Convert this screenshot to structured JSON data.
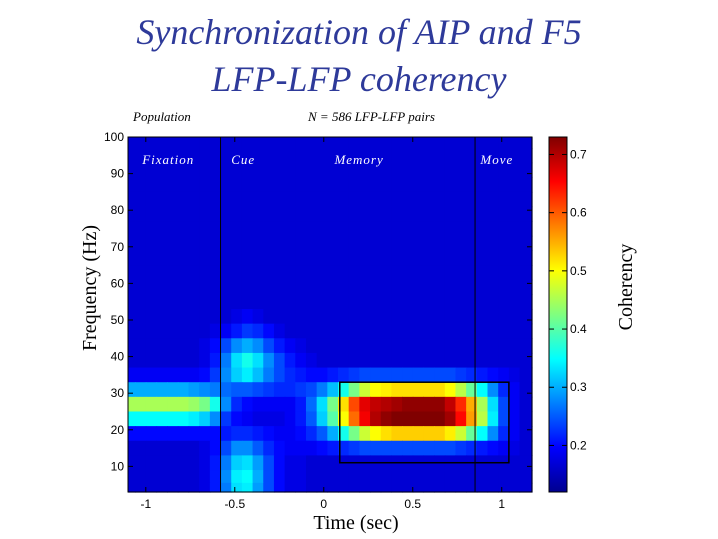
{
  "title": {
    "line1": "Synchronization of AIP and F5",
    "line2": "LFP-LFP coherency"
  },
  "chart_data": {
    "type": "heatmap",
    "corner_left": "Population",
    "corner_center": "N = 586 LFP-LFP pairs",
    "xlabel": "Time (sec)",
    "ylabel": "Frequency (Hz)",
    "colorbar_label": "Coherency",
    "xlim": [
      -1.1,
      1.17
    ],
    "ylim": [
      3,
      100
    ],
    "xticks": [
      -1,
      -0.5,
      0,
      0.5,
      1
    ],
    "xtick_labels": [
      "-1",
      "-0.5",
      "0",
      "0.5",
      "1"
    ],
    "yticks": [
      10,
      20,
      30,
      40,
      50,
      60,
      70,
      80,
      90,
      100
    ],
    "ytick_labels": [
      "10",
      "20",
      "30",
      "40",
      "50",
      "60",
      "70",
      "80",
      "90",
      "100"
    ],
    "clim": [
      0.12,
      0.73
    ],
    "cticks": [
      0.2,
      0.3,
      0.4,
      0.5,
      0.6,
      0.7
    ],
    "ctick_labels": [
      "0.2",
      "0.3",
      "0.4",
      "0.5",
      "0.6",
      "0.7"
    ],
    "colormap": "jet",
    "epoch_lines_x": [
      -0.58,
      0.85
    ],
    "epoch_labels": [
      {
        "text": "Fixation",
        "x": -1.02,
        "y": 94
      },
      {
        "text": "Cue",
        "x": -0.52,
        "y": 94
      },
      {
        "text": "Memory",
        "x": 0.06,
        "y": 94
      },
      {
        "text": "Move",
        "x": 0.88,
        "y": 94
      }
    ],
    "highlight_box": {
      "x0": 0.09,
      "x1": 1.04,
      "y0": 11,
      "y1": 33
    },
    "x": [
      -1.09,
      -1.03,
      -0.97,
      -0.91,
      -0.85,
      -0.79,
      -0.73,
      -0.67,
      -0.61,
      -0.55,
      -0.49,
      -0.43,
      -0.37,
      -0.31,
      -0.25,
      -0.19,
      -0.13,
      -0.07,
      -0.01,
      0.05,
      0.11,
      0.17,
      0.23,
      0.29,
      0.35,
      0.41,
      0.47,
      0.53,
      0.59,
      0.65,
      0.71,
      0.77,
      0.83,
      0.89,
      0.95,
      1.01,
      1.07,
      1.13
    ],
    "y": [
      99,
      95,
      91,
      87,
      83,
      79,
      75,
      71,
      67,
      63,
      59,
      55,
      51,
      47,
      43,
      39,
      35,
      31,
      27,
      23,
      19,
      15,
      11,
      7,
      4
    ],
    "z": [
      [
        0.17,
        0.17,
        0.17,
        0.17,
        0.17,
        0.17,
        0.17,
        0.17,
        0.17,
        0.17,
        0.17,
        0.17,
        0.17,
        0.17,
        0.17,
        0.17,
        0.17,
        0.17,
        0.17,
        0.17,
        0.17,
        0.17,
        0.17,
        0.17,
        0.17,
        0.17,
        0.17,
        0.17,
        0.17,
        0.17,
        0.17,
        0.17,
        0.17,
        0.17,
        0.17,
        0.17,
        0.17,
        0.17
      ],
      [
        0.17,
        0.17,
        0.17,
        0.17,
        0.17,
        0.17,
        0.17,
        0.17,
        0.17,
        0.17,
        0.17,
        0.17,
        0.17,
        0.17,
        0.17,
        0.17,
        0.17,
        0.17,
        0.17,
        0.17,
        0.17,
        0.17,
        0.17,
        0.17,
        0.17,
        0.17,
        0.17,
        0.17,
        0.17,
        0.17,
        0.17,
        0.17,
        0.17,
        0.17,
        0.17,
        0.17,
        0.17,
        0.17
      ],
      [
        0.17,
        0.17,
        0.17,
        0.17,
        0.17,
        0.17,
        0.17,
        0.17,
        0.17,
        0.17,
        0.17,
        0.17,
        0.17,
        0.17,
        0.17,
        0.17,
        0.17,
        0.17,
        0.17,
        0.17,
        0.17,
        0.17,
        0.17,
        0.17,
        0.17,
        0.17,
        0.17,
        0.17,
        0.17,
        0.17,
        0.17,
        0.17,
        0.17,
        0.17,
        0.17,
        0.17,
        0.17,
        0.17
      ],
      [
        0.17,
        0.17,
        0.17,
        0.17,
        0.17,
        0.17,
        0.17,
        0.17,
        0.17,
        0.17,
        0.17,
        0.17,
        0.17,
        0.17,
        0.17,
        0.17,
        0.17,
        0.17,
        0.17,
        0.17,
        0.17,
        0.17,
        0.17,
        0.17,
        0.17,
        0.17,
        0.17,
        0.17,
        0.17,
        0.17,
        0.17,
        0.17,
        0.17,
        0.17,
        0.17,
        0.17,
        0.17,
        0.17
      ],
      [
        0.17,
        0.17,
        0.17,
        0.17,
        0.17,
        0.17,
        0.17,
        0.17,
        0.17,
        0.17,
        0.17,
        0.17,
        0.17,
        0.17,
        0.17,
        0.17,
        0.17,
        0.17,
        0.17,
        0.17,
        0.17,
        0.17,
        0.17,
        0.17,
        0.17,
        0.17,
        0.17,
        0.17,
        0.17,
        0.17,
        0.17,
        0.17,
        0.17,
        0.17,
        0.17,
        0.17,
        0.17,
        0.17
      ],
      [
        0.17,
        0.17,
        0.17,
        0.17,
        0.17,
        0.17,
        0.17,
        0.17,
        0.17,
        0.17,
        0.17,
        0.17,
        0.17,
        0.17,
        0.17,
        0.17,
        0.17,
        0.17,
        0.17,
        0.17,
        0.17,
        0.17,
        0.17,
        0.17,
        0.17,
        0.17,
        0.17,
        0.17,
        0.17,
        0.17,
        0.17,
        0.17,
        0.17,
        0.17,
        0.17,
        0.17,
        0.17,
        0.17
      ],
      [
        0.17,
        0.17,
        0.17,
        0.17,
        0.17,
        0.17,
        0.17,
        0.17,
        0.17,
        0.17,
        0.17,
        0.17,
        0.17,
        0.17,
        0.17,
        0.17,
        0.17,
        0.17,
        0.17,
        0.17,
        0.17,
        0.17,
        0.17,
        0.17,
        0.17,
        0.17,
        0.17,
        0.17,
        0.17,
        0.17,
        0.17,
        0.17,
        0.17,
        0.17,
        0.17,
        0.17,
        0.17,
        0.17
      ],
      [
        0.17,
        0.17,
        0.17,
        0.17,
        0.17,
        0.17,
        0.17,
        0.17,
        0.17,
        0.17,
        0.17,
        0.17,
        0.17,
        0.17,
        0.17,
        0.17,
        0.17,
        0.17,
        0.17,
        0.17,
        0.17,
        0.17,
        0.17,
        0.17,
        0.17,
        0.17,
        0.17,
        0.17,
        0.17,
        0.17,
        0.17,
        0.17,
        0.17,
        0.17,
        0.17,
        0.17,
        0.17,
        0.17
      ],
      [
        0.17,
        0.17,
        0.17,
        0.17,
        0.17,
        0.17,
        0.17,
        0.17,
        0.17,
        0.17,
        0.17,
        0.17,
        0.17,
        0.17,
        0.17,
        0.17,
        0.17,
        0.17,
        0.17,
        0.17,
        0.17,
        0.17,
        0.17,
        0.17,
        0.17,
        0.17,
        0.17,
        0.17,
        0.17,
        0.17,
        0.17,
        0.17,
        0.17,
        0.17,
        0.17,
        0.17,
        0.17,
        0.17
      ],
      [
        0.17,
        0.17,
        0.17,
        0.17,
        0.17,
        0.17,
        0.17,
        0.17,
        0.17,
        0.17,
        0.17,
        0.17,
        0.17,
        0.17,
        0.17,
        0.17,
        0.17,
        0.17,
        0.17,
        0.17,
        0.17,
        0.17,
        0.17,
        0.17,
        0.17,
        0.17,
        0.17,
        0.17,
        0.17,
        0.17,
        0.17,
        0.17,
        0.17,
        0.17,
        0.17,
        0.17,
        0.17,
        0.17
      ],
      [
        0.17,
        0.17,
        0.17,
        0.17,
        0.17,
        0.17,
        0.17,
        0.17,
        0.17,
        0.17,
        0.17,
        0.17,
        0.17,
        0.17,
        0.17,
        0.17,
        0.17,
        0.17,
        0.17,
        0.17,
        0.17,
        0.17,
        0.17,
        0.17,
        0.17,
        0.17,
        0.17,
        0.17,
        0.17,
        0.17,
        0.17,
        0.17,
        0.17,
        0.17,
        0.17,
        0.17,
        0.17,
        0.17
      ],
      [
        0.17,
        0.17,
        0.17,
        0.17,
        0.17,
        0.17,
        0.17,
        0.17,
        0.17,
        0.17,
        0.17,
        0.17,
        0.17,
        0.17,
        0.17,
        0.17,
        0.17,
        0.17,
        0.17,
        0.17,
        0.17,
        0.17,
        0.17,
        0.17,
        0.17,
        0.17,
        0.17,
        0.17,
        0.17,
        0.17,
        0.17,
        0.17,
        0.17,
        0.17,
        0.17,
        0.17,
        0.17,
        0.17
      ],
      [
        0.17,
        0.17,
        0.17,
        0.17,
        0.17,
        0.17,
        0.17,
        0.17,
        0.17,
        0.17,
        0.18,
        0.19,
        0.18,
        0.17,
        0.17,
        0.17,
        0.17,
        0.17,
        0.17,
        0.17,
        0.17,
        0.17,
        0.17,
        0.17,
        0.17,
        0.17,
        0.17,
        0.17,
        0.17,
        0.17,
        0.17,
        0.17,
        0.17,
        0.17,
        0.17,
        0.17,
        0.17,
        0.17
      ],
      [
        0.17,
        0.17,
        0.17,
        0.17,
        0.17,
        0.17,
        0.17,
        0.17,
        0.18,
        0.19,
        0.21,
        0.23,
        0.22,
        0.2,
        0.18,
        0.17,
        0.17,
        0.17,
        0.17,
        0.17,
        0.17,
        0.17,
        0.17,
        0.17,
        0.17,
        0.17,
        0.17,
        0.17,
        0.17,
        0.17,
        0.17,
        0.17,
        0.17,
        0.17,
        0.17,
        0.17,
        0.17,
        0.17
      ],
      [
        0.17,
        0.17,
        0.17,
        0.17,
        0.17,
        0.17,
        0.17,
        0.18,
        0.2,
        0.24,
        0.28,
        0.3,
        0.28,
        0.24,
        0.21,
        0.19,
        0.18,
        0.17,
        0.17,
        0.17,
        0.17,
        0.17,
        0.17,
        0.17,
        0.17,
        0.17,
        0.17,
        0.17,
        0.17,
        0.17,
        0.17,
        0.17,
        0.17,
        0.17,
        0.17,
        0.17,
        0.17,
        0.17
      ],
      [
        0.17,
        0.17,
        0.17,
        0.17,
        0.17,
        0.17,
        0.17,
        0.18,
        0.21,
        0.27,
        0.33,
        0.36,
        0.33,
        0.28,
        0.24,
        0.21,
        0.19,
        0.18,
        0.17,
        0.17,
        0.17,
        0.17,
        0.17,
        0.17,
        0.17,
        0.17,
        0.17,
        0.17,
        0.17,
        0.17,
        0.17,
        0.17,
        0.17,
        0.17,
        0.17,
        0.17,
        0.17,
        0.17
      ],
      [
        0.19,
        0.19,
        0.19,
        0.19,
        0.19,
        0.19,
        0.19,
        0.2,
        0.23,
        0.28,
        0.32,
        0.34,
        0.31,
        0.27,
        0.24,
        0.22,
        0.21,
        0.2,
        0.2,
        0.21,
        0.22,
        0.23,
        0.24,
        0.24,
        0.24,
        0.24,
        0.24,
        0.24,
        0.24,
        0.24,
        0.24,
        0.23,
        0.22,
        0.21,
        0.2,
        0.19,
        0.18,
        0.17
      ],
      [
        0.3,
        0.3,
        0.3,
        0.3,
        0.3,
        0.3,
        0.29,
        0.28,
        0.27,
        0.26,
        0.25,
        0.25,
        0.24,
        0.23,
        0.22,
        0.22,
        0.23,
        0.24,
        0.27,
        0.31,
        0.36,
        0.42,
        0.47,
        0.5,
        0.51,
        0.52,
        0.52,
        0.52,
        0.52,
        0.52,
        0.5,
        0.46,
        0.41,
        0.35,
        0.28,
        0.22,
        0.19,
        0.17
      ],
      [
        0.45,
        0.45,
        0.45,
        0.45,
        0.45,
        0.45,
        0.44,
        0.42,
        0.36,
        0.28,
        0.22,
        0.2,
        0.19,
        0.19,
        0.19,
        0.19,
        0.21,
        0.26,
        0.33,
        0.42,
        0.52,
        0.61,
        0.67,
        0.69,
        0.7,
        0.71,
        0.72,
        0.72,
        0.72,
        0.72,
        0.69,
        0.63,
        0.55,
        0.45,
        0.33,
        0.24,
        0.19,
        0.17
      ],
      [
        0.35,
        0.35,
        0.35,
        0.35,
        0.35,
        0.35,
        0.34,
        0.32,
        0.28,
        0.23,
        0.2,
        0.19,
        0.18,
        0.18,
        0.18,
        0.19,
        0.21,
        0.25,
        0.32,
        0.4,
        0.5,
        0.59,
        0.66,
        0.7,
        0.72,
        0.73,
        0.73,
        0.73,
        0.73,
        0.73,
        0.71,
        0.65,
        0.56,
        0.46,
        0.34,
        0.24,
        0.19,
        0.17
      ],
      [
        0.2,
        0.2,
        0.2,
        0.2,
        0.2,
        0.2,
        0.2,
        0.2,
        0.2,
        0.21,
        0.22,
        0.22,
        0.21,
        0.2,
        0.19,
        0.19,
        0.2,
        0.22,
        0.25,
        0.3,
        0.36,
        0.42,
        0.47,
        0.5,
        0.52,
        0.53,
        0.53,
        0.53,
        0.53,
        0.53,
        0.51,
        0.47,
        0.41,
        0.35,
        0.28,
        0.22,
        0.19,
        0.17
      ],
      [
        0.17,
        0.17,
        0.17,
        0.17,
        0.17,
        0.17,
        0.17,
        0.18,
        0.2,
        0.24,
        0.28,
        0.28,
        0.25,
        0.22,
        0.2,
        0.19,
        0.19,
        0.19,
        0.2,
        0.21,
        0.22,
        0.23,
        0.24,
        0.24,
        0.24,
        0.24,
        0.24,
        0.24,
        0.24,
        0.24,
        0.24,
        0.23,
        0.22,
        0.21,
        0.2,
        0.19,
        0.18,
        0.17
      ],
      [
        0.17,
        0.17,
        0.17,
        0.17,
        0.17,
        0.17,
        0.17,
        0.18,
        0.21,
        0.27,
        0.32,
        0.33,
        0.29,
        0.24,
        0.2,
        0.18,
        0.18,
        0.17,
        0.17,
        0.17,
        0.17,
        0.17,
        0.17,
        0.17,
        0.17,
        0.17,
        0.17,
        0.17,
        0.17,
        0.17,
        0.17,
        0.17,
        0.17,
        0.17,
        0.17,
        0.17,
        0.17,
        0.17
      ],
      [
        0.17,
        0.17,
        0.17,
        0.17,
        0.17,
        0.17,
        0.17,
        0.18,
        0.21,
        0.28,
        0.34,
        0.35,
        0.3,
        0.24,
        0.2,
        0.18,
        0.18,
        0.17,
        0.17,
        0.17,
        0.17,
        0.17,
        0.17,
        0.17,
        0.17,
        0.17,
        0.17,
        0.17,
        0.17,
        0.17,
        0.17,
        0.17,
        0.17,
        0.17,
        0.17,
        0.17,
        0.17,
        0.17
      ],
      [
        0.17,
        0.17,
        0.17,
        0.17,
        0.17,
        0.17,
        0.17,
        0.18,
        0.21,
        0.27,
        0.33,
        0.34,
        0.29,
        0.24,
        0.2,
        0.18,
        0.18,
        0.17,
        0.17,
        0.17,
        0.17,
        0.17,
        0.17,
        0.17,
        0.17,
        0.17,
        0.17,
        0.17,
        0.17,
        0.17,
        0.17,
        0.17,
        0.17,
        0.17,
        0.17,
        0.17,
        0.17,
        0.17
      ]
    ]
  }
}
